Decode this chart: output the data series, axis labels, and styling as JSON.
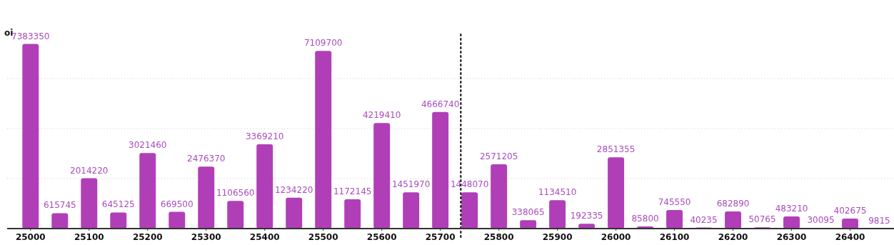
{
  "chart_data": {
    "type": "bar",
    "ylabel": "oi",
    "x": [
      25000,
      25050,
      25100,
      25150,
      25200,
      25250,
      25300,
      25350,
      25400,
      25450,
      25500,
      25550,
      25600,
      25650,
      25700,
      25750,
      25800,
      25850,
      25900,
      25950,
      26000,
      26050,
      26100,
      26150,
      26200,
      26250,
      26300,
      26350,
      26400,
      26450
    ],
    "values": [
      7383350,
      615745,
      2014220,
      645125,
      3021460,
      669500,
      2476370,
      1106560,
      3369210,
      1234220,
      7109700,
      1172145,
      4219410,
      1451970,
      4666740,
      1448070,
      2571205,
      338065,
      1134510,
      192335,
      2851355,
      85800,
      745550,
      40235,
      682890,
      50765,
      483210,
      30095,
      402675,
      9815
    ],
    "color": "#b03fb7",
    "data_labels": true,
    "xlim": [
      24960,
      26475
    ],
    "xticks": [
      25000,
      25100,
      25200,
      25300,
      25400,
      25500,
      25600,
      25700,
      25800,
      25900,
      26000,
      26100,
      26200,
      26300,
      26400
    ],
    "yticks": [
      {
        "value": 2000000,
        "label": null
      },
      {
        "value": 4000000,
        "label": null
      },
      {
        "value": 6000000,
        "label": null
      }
    ],
    "grid": "y",
    "tick_labels": "x",
    "ref_lines": [
      {
        "axis": "x",
        "value": 25735,
        "line_style": "dotted",
        "color": "#000000"
      }
    ]
  }
}
